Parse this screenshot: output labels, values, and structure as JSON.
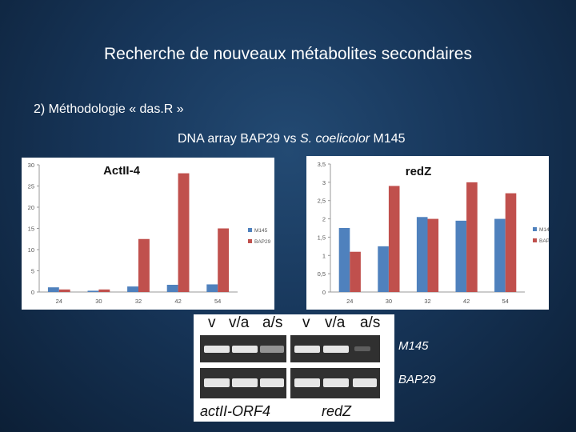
{
  "slide": {
    "title": "Recherche de nouveaux métabolites secondaires",
    "subtitle": "2) Méthodologie « das.R »",
    "caption_prefix": "DNA array BAP29 vs ",
    "caption_italic": "S. coelicolor",
    "caption_suffix": " M145"
  },
  "colors": {
    "M145": "#4f81bd",
    "BAP29": "#c0504d"
  },
  "chart_data": [
    {
      "type": "bar",
      "title": "ActII-4",
      "categories": [
        "24",
        "30",
        "32",
        "42",
        "54"
      ],
      "series": [
        {
          "name": "M145",
          "values": [
            1.1,
            0.3,
            1.3,
            1.7,
            1.8
          ]
        },
        {
          "name": "BAP29",
          "values": [
            0.6,
            0.6,
            12.5,
            28,
            15
          ]
        }
      ],
      "ylim": [
        0,
        30
      ],
      "yticks": [
        "0",
        "5",
        "10",
        "15",
        "20",
        "25",
        "30"
      ],
      "legend": "right",
      "grid": false
    },
    {
      "type": "bar",
      "title": "redZ",
      "categories": [
        "24",
        "30",
        "32",
        "42",
        "54"
      ],
      "series": [
        {
          "name": "M145",
          "values": [
            1.75,
            1.25,
            2.05,
            1.95,
            2.0
          ]
        },
        {
          "name": "BAP29",
          "values": [
            1.1,
            2.9,
            2.0,
            3.0,
            2.7
          ]
        }
      ],
      "ylim": [
        0,
        3.5
      ],
      "yticks": [
        "0",
        "0,5",
        "1",
        "1,5",
        "2",
        "2,5",
        "3",
        "3,5"
      ],
      "legend": "right",
      "grid": false
    }
  ],
  "gel": {
    "lane_labels_left": [
      "v",
      "v/a",
      "a/s"
    ],
    "lane_labels_right": [
      "v",
      "v/a",
      "a/s"
    ],
    "row_labels": [
      "M145",
      "BAP29"
    ],
    "bottom_left": "actII-ORF4",
    "bottom_right": "redZ"
  }
}
